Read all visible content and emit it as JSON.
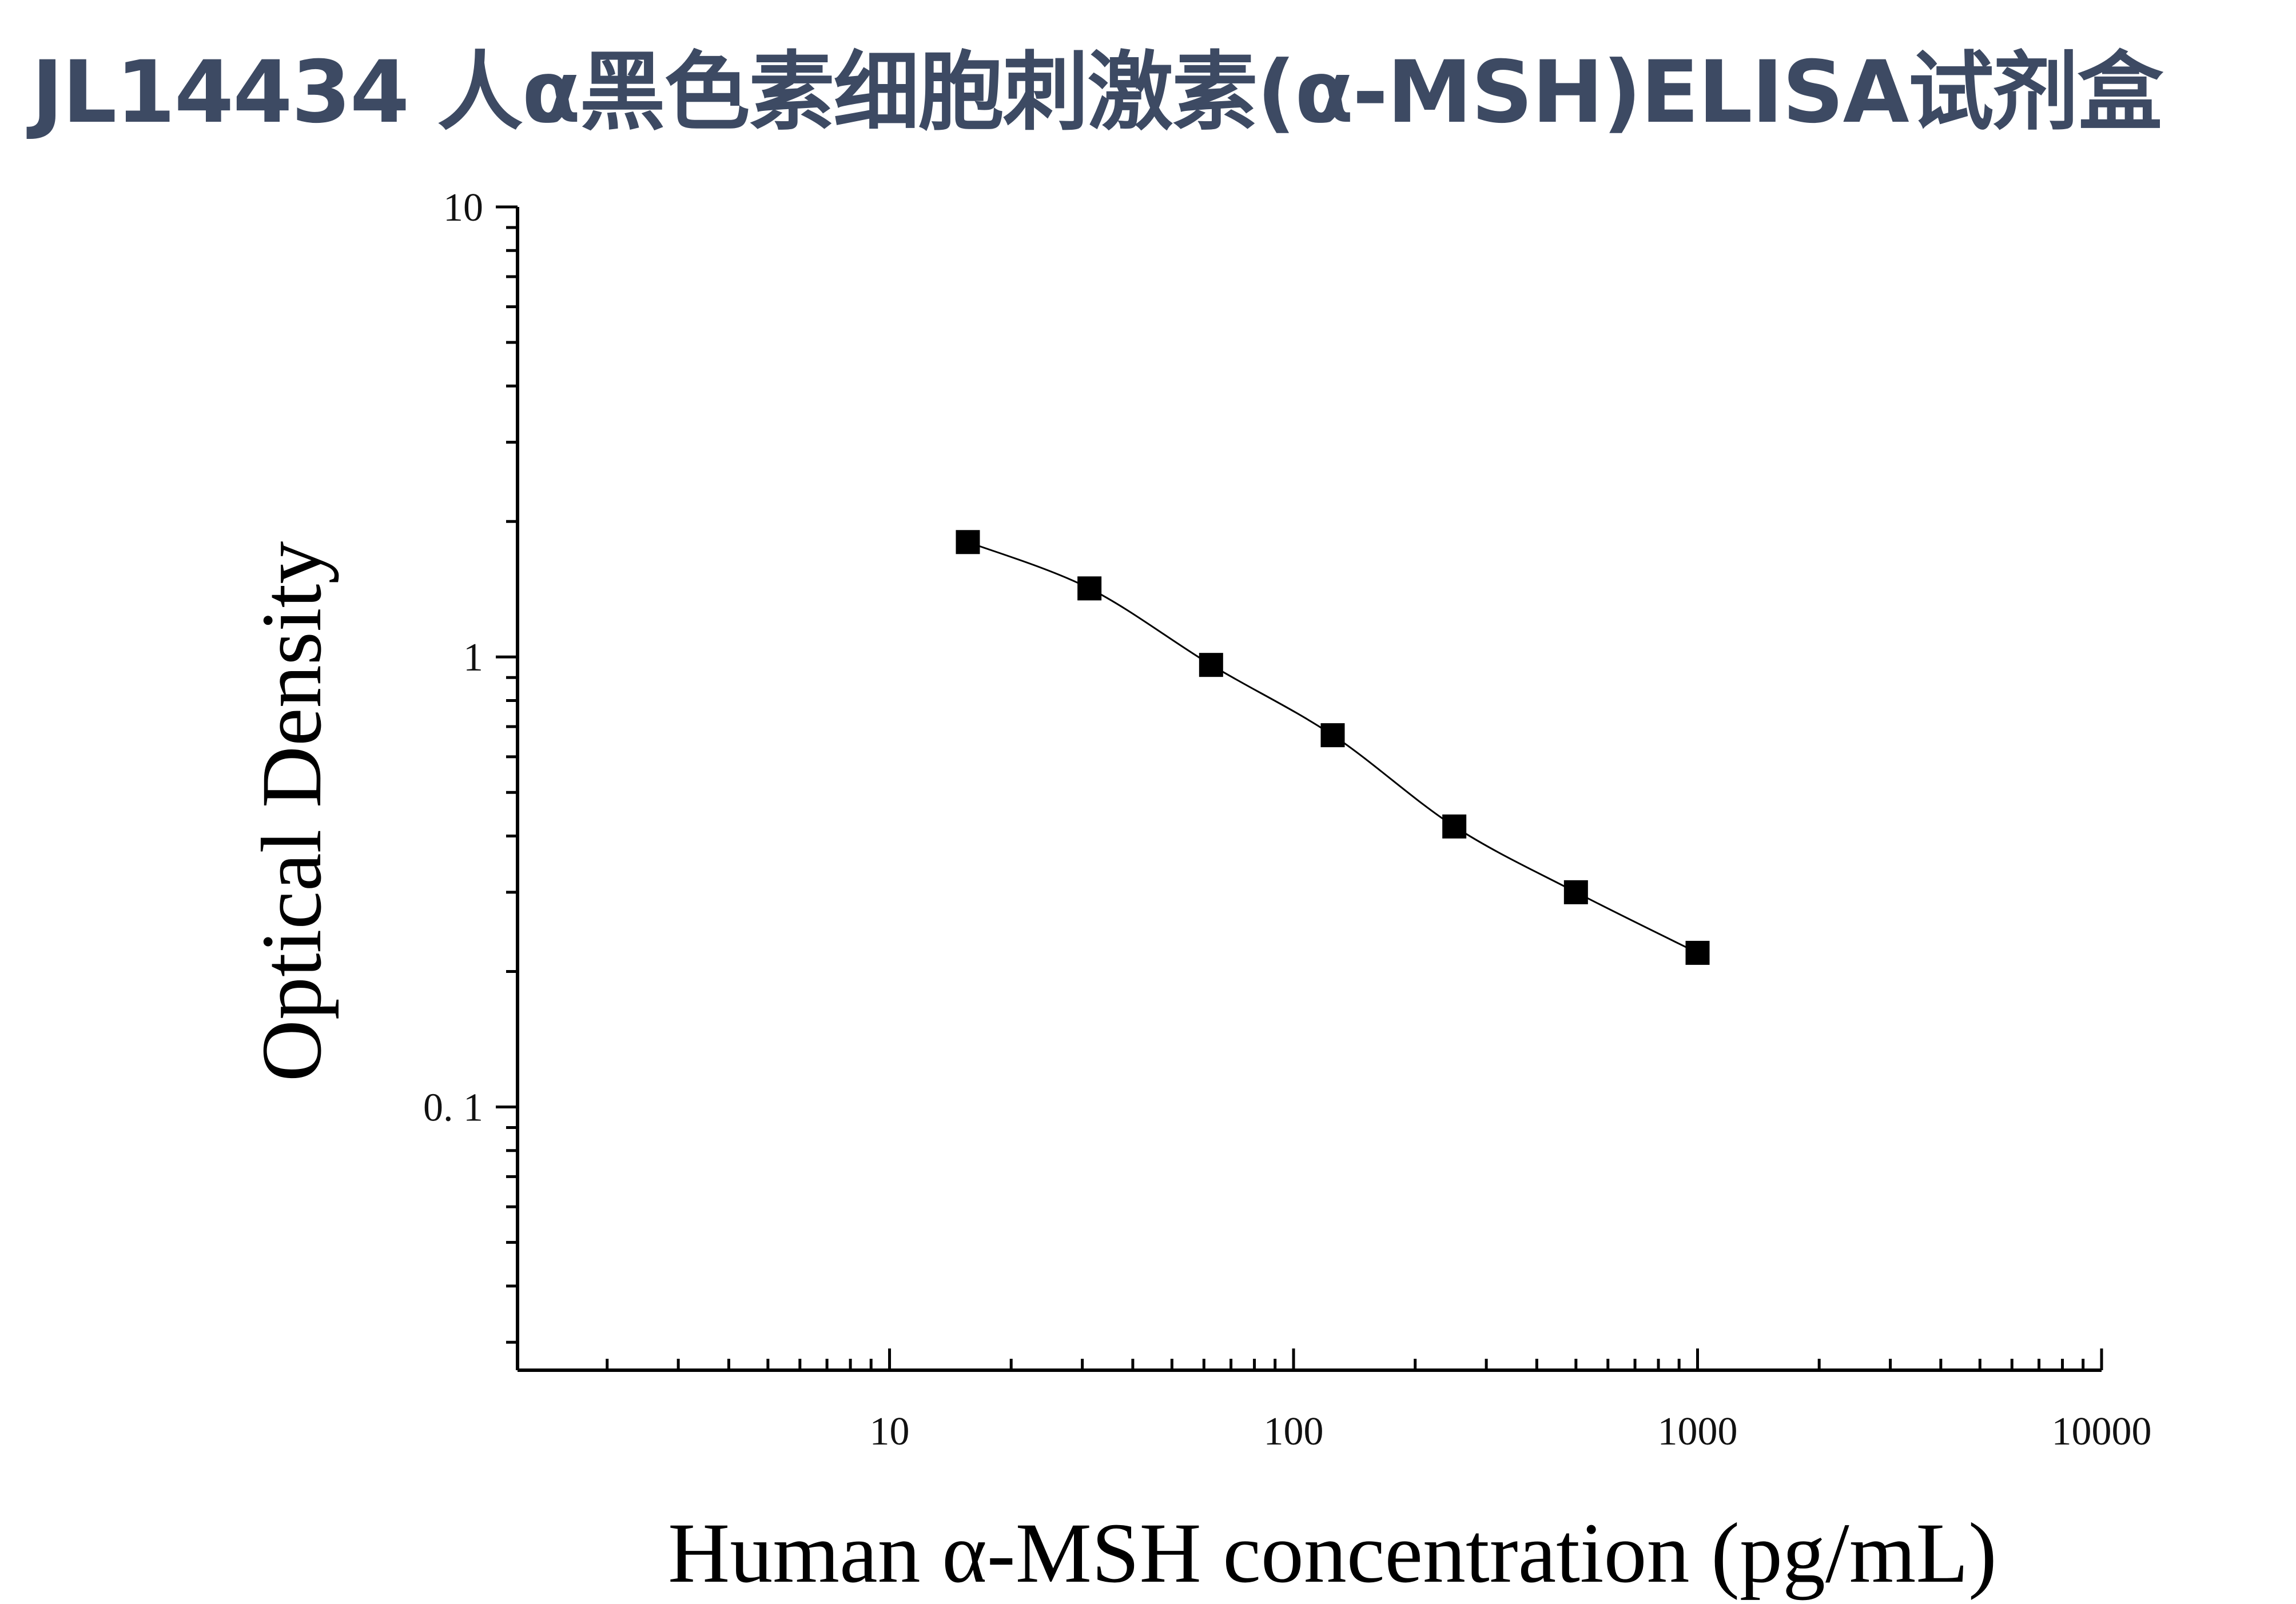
{
  "title": "JL14434 人α黑色素细胞刺激素(α-MSH)ELISA试剂盒",
  "colors": {
    "title": "#3d4a63",
    "axis": "#000000",
    "marker": "#000000"
  },
  "chart_data": {
    "type": "scatter",
    "title": "JL14434 人α黑色素细胞刺激素(α-MSH)ELISA试剂盒",
    "xlabel": "Human α-MSH concentration (pg/mL)",
    "ylabel": "Optical Density",
    "xscale": "log",
    "yscale": "log",
    "xlim": [
      1.2,
      10000
    ],
    "ylim": [
      0.026,
      10
    ],
    "x_ticks": [
      {
        "value": 10,
        "label": "10"
      },
      {
        "value": 100,
        "label": "100"
      },
      {
        "value": 1000,
        "label": "1000"
      },
      {
        "value": 10000,
        "label": "10000"
      }
    ],
    "y_ticks": [
      {
        "value": 0.1,
        "label": "0. 1"
      },
      {
        "value": 1,
        "label": "1"
      },
      {
        "value": 10,
        "label": "10"
      }
    ],
    "marker": "square",
    "fit_curve": true,
    "grid": false,
    "legend": "none",
    "series": [
      {
        "x": [
          15.625,
          31.25,
          62.5,
          125,
          250,
          500,
          1000
        ],
        "y": [
          1.8,
          1.42,
          0.96,
          0.67,
          0.42,
          0.3,
          0.22
        ]
      }
    ]
  }
}
